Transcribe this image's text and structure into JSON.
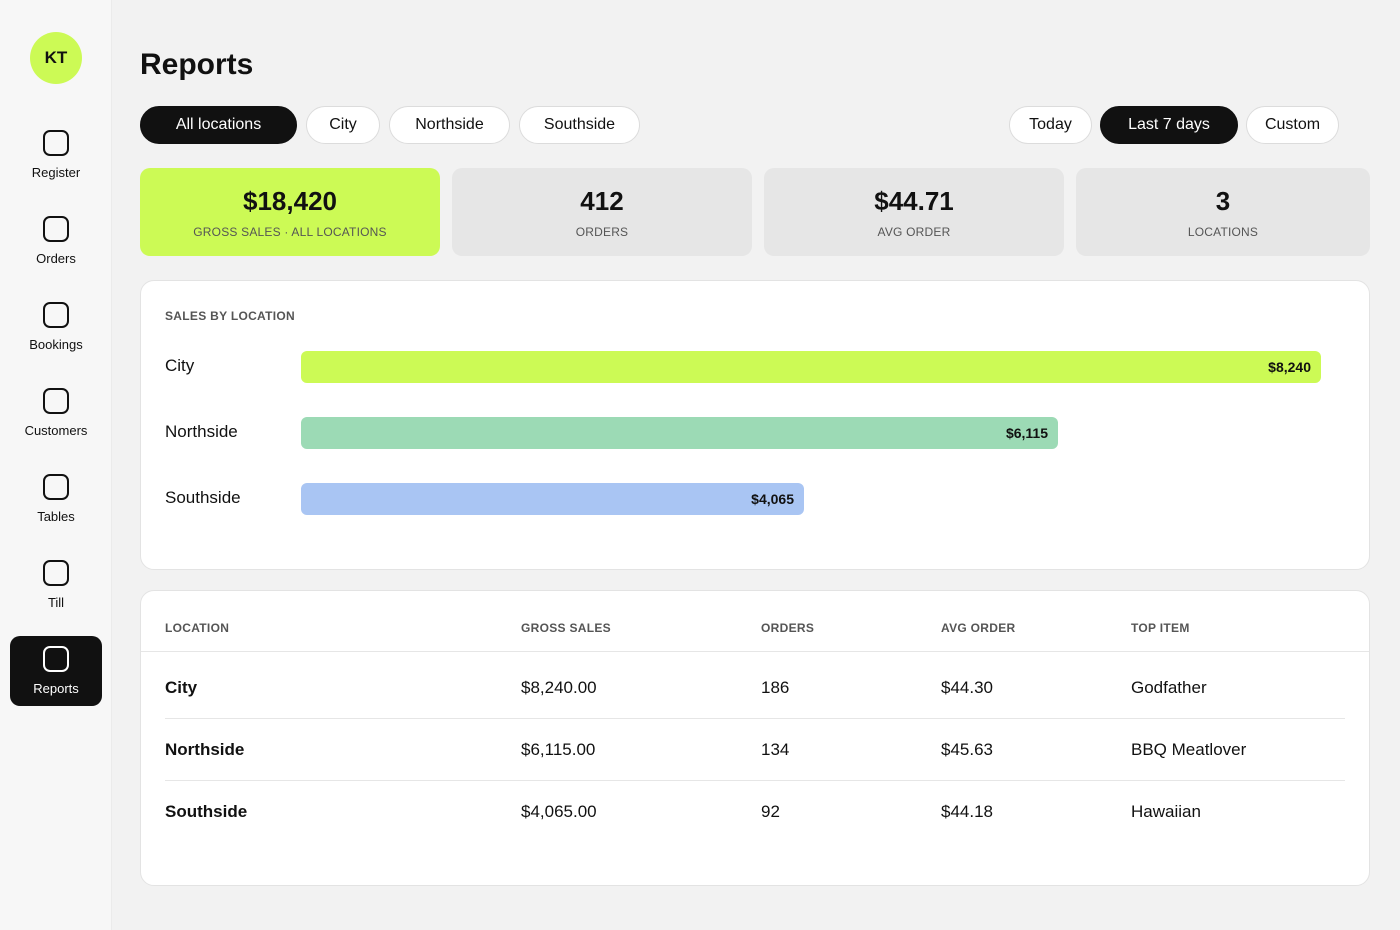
{
  "user": {
    "initials": "KT"
  },
  "sidebar": {
    "items": [
      {
        "label": "Register"
      },
      {
        "label": "Orders"
      },
      {
        "label": "Bookings"
      },
      {
        "label": "Customers"
      },
      {
        "label": "Tables"
      },
      {
        "label": "Till"
      },
      {
        "label": "Reports",
        "active": true
      }
    ]
  },
  "header": {
    "title": "Reports"
  },
  "location_filters": [
    "All locations",
    "City",
    "Northside",
    "Southside"
  ],
  "location_filter_selected": "All locations",
  "date_filters": [
    "Today",
    "Last 7 days",
    "Custom"
  ],
  "date_filter_selected": "Last 7 days",
  "stats": [
    {
      "value": "$18,420",
      "label": "GROSS SALES · ALL LOCATIONS"
    },
    {
      "value": "412",
      "label": "ORDERS"
    },
    {
      "value": "$44.71",
      "label": "AVG ORDER"
    },
    {
      "value": "3",
      "label": "LOCATIONS"
    }
  ],
  "sales_panel": {
    "heading": "SALES BY LOCATION"
  },
  "chart_data": {
    "type": "bar",
    "orientation": "horizontal",
    "title": "SALES BY LOCATION",
    "categories": [
      "City",
      "Northside",
      "Southside"
    ],
    "values": [
      8240,
      6115,
      4065
    ],
    "value_labels": [
      "$8,240",
      "$6,115",
      "$4,065"
    ],
    "colors": [
      "#ccfa55",
      "#9cdab5",
      "#a9c5f3"
    ],
    "grid": false
  },
  "table": {
    "columns": [
      "LOCATION",
      "GROSS SALES",
      "ORDERS",
      "AVG ORDER",
      "TOP ITEM"
    ],
    "rows": [
      [
        "City",
        "$8,240.00",
        "186",
        "$44.30",
        "Godfather"
      ],
      [
        "Northside",
        "$6,115.00",
        "134",
        "$45.63",
        "BBQ Meatlover"
      ],
      [
        "Southside",
        "$4,065.00",
        "92",
        "$44.18",
        "Hawaiian"
      ]
    ]
  },
  "colors": {
    "accent": "#ccfa55",
    "dark": "#111111"
  }
}
